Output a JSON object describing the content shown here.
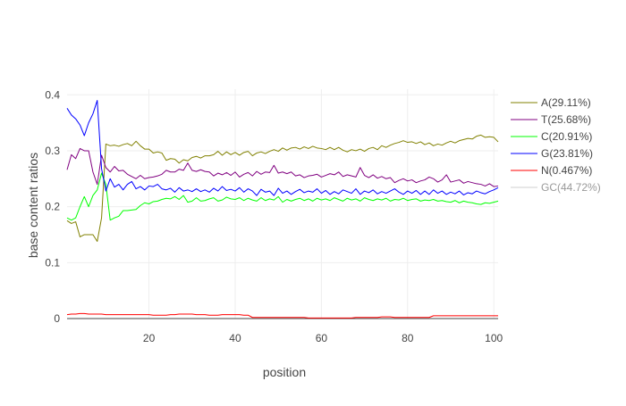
{
  "chart_data": {
    "type": "line",
    "title": "",
    "xlabel": "position",
    "ylabel": "base content ratios",
    "xlim": [
      1,
      101
    ],
    "ylim": [
      0,
      0.41
    ],
    "x_ticks": [
      20,
      40,
      60,
      80,
      100
    ],
    "y_ticks": [
      0,
      0.1,
      0.2,
      0.3,
      0.4
    ],
    "x_tick_labels": [
      "20",
      "40",
      "60",
      "80",
      "100"
    ],
    "y_tick_labels": [
      "0",
      "0.1",
      "0.2",
      "0.3",
      "0.4"
    ],
    "grid": true,
    "legend_position": "right",
    "x": [
      1,
      2,
      3,
      4,
      5,
      6,
      7,
      8,
      9,
      10,
      11,
      12,
      13,
      14,
      15,
      16,
      17,
      18,
      19,
      20,
      21,
      22,
      23,
      24,
      25,
      26,
      27,
      28,
      29,
      30,
      31,
      32,
      33,
      34,
      35,
      36,
      37,
      38,
      39,
      40,
      41,
      42,
      43,
      44,
      45,
      46,
      47,
      48,
      49,
      50,
      51,
      52,
      53,
      54,
      55,
      56,
      57,
      58,
      59,
      60,
      61,
      62,
      63,
      64,
      65,
      66,
      67,
      68,
      69,
      70,
      71,
      72,
      73,
      74,
      75,
      76,
      77,
      78,
      79,
      80,
      81,
      82,
      83,
      84,
      85,
      86,
      87,
      88,
      89,
      90,
      91,
      92,
      93,
      94,
      95,
      96,
      97,
      98,
      99,
      100,
      101
    ],
    "series": [
      {
        "name": "A(29.11%)",
        "color": "#808000",
        "values": [
          0.175,
          0.17,
          0.173,
          0.146,
          0.15,
          0.15,
          0.15,
          0.138,
          0.18,
          0.312,
          0.309,
          0.31,
          0.308,
          0.311,
          0.313,
          0.309,
          0.317,
          0.309,
          0.303,
          0.303,
          0.296,
          0.298,
          0.296,
          0.283,
          0.286,
          0.285,
          0.278,
          0.284,
          0.282,
          0.288,
          0.29,
          0.287,
          0.291,
          0.291,
          0.293,
          0.299,
          0.292,
          0.298,
          0.293,
          0.297,
          0.292,
          0.297,
          0.299,
          0.291,
          0.296,
          0.298,
          0.295,
          0.299,
          0.302,
          0.299,
          0.305,
          0.301,
          0.305,
          0.306,
          0.303,
          0.307,
          0.304,
          0.308,
          0.305,
          0.304,
          0.302,
          0.306,
          0.302,
          0.306,
          0.301,
          0.298,
          0.302,
          0.3,
          0.303,
          0.299,
          0.304,
          0.306,
          0.302,
          0.309,
          0.306,
          0.31,
          0.313,
          0.315,
          0.318,
          0.315,
          0.316,
          0.313,
          0.316,
          0.311,
          0.314,
          0.309,
          0.312,
          0.31,
          0.314,
          0.317,
          0.314,
          0.318,
          0.32,
          0.322,
          0.321,
          0.326,
          0.328,
          0.324,
          0.325,
          0.324,
          0.316
        ]
      },
      {
        "name": "T(25.68%)",
        "color": "#800080",
        "values": [
          0.266,
          0.293,
          0.286,
          0.304,
          0.3,
          0.3,
          0.262,
          0.24,
          0.292,
          0.27,
          0.262,
          0.272,
          0.264,
          0.265,
          0.258,
          0.254,
          0.25,
          0.256,
          0.25,
          0.252,
          0.253,
          0.255,
          0.258,
          0.265,
          0.262,
          0.262,
          0.267,
          0.265,
          0.278,
          0.265,
          0.263,
          0.266,
          0.263,
          0.262,
          0.255,
          0.26,
          0.257,
          0.261,
          0.256,
          0.262,
          0.253,
          0.258,
          0.261,
          0.255,
          0.263,
          0.258,
          0.262,
          0.261,
          0.274,
          0.26,
          0.262,
          0.259,
          0.262,
          0.255,
          0.257,
          0.252,
          0.255,
          0.256,
          0.258,
          0.253,
          0.256,
          0.259,
          0.257,
          0.262,
          0.254,
          0.257,
          0.255,
          0.253,
          0.27,
          0.256,
          0.252,
          0.257,
          0.251,
          0.254,
          0.25,
          0.252,
          0.243,
          0.247,
          0.25,
          0.246,
          0.248,
          0.243,
          0.246,
          0.248,
          0.253,
          0.25,
          0.244,
          0.248,
          0.257,
          0.244,
          0.246,
          0.248,
          0.242,
          0.245,
          0.243,
          0.241,
          0.24,
          0.237,
          0.241,
          0.236,
          0.237
        ]
      },
      {
        "name": "C(20.91%)",
        "color": "#00ff00",
        "values": [
          0.18,
          0.176,
          0.18,
          0.2,
          0.218,
          0.2,
          0.22,
          0.23,
          0.26,
          0.24,
          0.176,
          0.18,
          0.183,
          0.193,
          0.193,
          0.194,
          0.195,
          0.202,
          0.207,
          0.205,
          0.209,
          0.21,
          0.213,
          0.215,
          0.214,
          0.218,
          0.213,
          0.22,
          0.208,
          0.21,
          0.216,
          0.21,
          0.211,
          0.214,
          0.216,
          0.21,
          0.212,
          0.217,
          0.214,
          0.213,
          0.216,
          0.211,
          0.215,
          0.212,
          0.21,
          0.216,
          0.211,
          0.214,
          0.212,
          0.218,
          0.208,
          0.213,
          0.21,
          0.213,
          0.215,
          0.211,
          0.214,
          0.21,
          0.215,
          0.212,
          0.214,
          0.211,
          0.216,
          0.213,
          0.21,
          0.215,
          0.212,
          0.214,
          0.21,
          0.216,
          0.213,
          0.211,
          0.214,
          0.212,
          0.215,
          0.21,
          0.213,
          0.212,
          0.215,
          0.211,
          0.213,
          0.214,
          0.21,
          0.212,
          0.211,
          0.213,
          0.21,
          0.211,
          0.209,
          0.208,
          0.211,
          0.207,
          0.21,
          0.208,
          0.207,
          0.205,
          0.204,
          0.207,
          0.206,
          0.208,
          0.21
        ]
      },
      {
        "name": "G(23.81%)",
        "color": "#0000ff",
        "values": [
          0.376,
          0.364,
          0.357,
          0.346,
          0.327,
          0.35,
          0.366,
          0.39,
          0.268,
          0.228,
          0.25,
          0.235,
          0.24,
          0.23,
          0.24,
          0.245,
          0.232,
          0.236,
          0.23,
          0.237,
          0.236,
          0.24,
          0.232,
          0.23,
          0.233,
          0.226,
          0.234,
          0.228,
          0.23,
          0.227,
          0.232,
          0.227,
          0.23,
          0.226,
          0.233,
          0.228,
          0.236,
          0.229,
          0.231,
          0.228,
          0.234,
          0.226,
          0.232,
          0.228,
          0.22,
          0.231,
          0.226,
          0.228,
          0.22,
          0.233,
          0.224,
          0.228,
          0.222,
          0.227,
          0.231,
          0.225,
          0.228,
          0.226,
          0.232,
          0.224,
          0.229,
          0.222,
          0.227,
          0.223,
          0.23,
          0.227,
          0.224,
          0.232,
          0.222,
          0.228,
          0.225,
          0.23,
          0.223,
          0.227,
          0.224,
          0.228,
          0.232,
          0.226,
          0.222,
          0.228,
          0.224,
          0.229,
          0.222,
          0.228,
          0.222,
          0.23,
          0.224,
          0.228,
          0.222,
          0.226,
          0.223,
          0.228,
          0.221,
          0.225,
          0.223,
          0.228,
          0.225,
          0.223,
          0.227,
          0.23,
          0.234
        ]
      },
      {
        "name": "N(0.467%)",
        "color": "#ff0000",
        "values": [
          0.007,
          0.008,
          0.008,
          0.009,
          0.009,
          0.008,
          0.008,
          0.008,
          0.008,
          0.007,
          0.007,
          0.007,
          0.007,
          0.007,
          0.007,
          0.007,
          0.007,
          0.007,
          0.007,
          0.007,
          0.006,
          0.006,
          0.006,
          0.006,
          0.007,
          0.007,
          0.008,
          0.008,
          0.008,
          0.008,
          0.007,
          0.007,
          0.007,
          0.006,
          0.006,
          0.006,
          0.007,
          0.007,
          0.007,
          0.007,
          0.007,
          0.006,
          0.006,
          0.002,
          0.002,
          0.002,
          0.002,
          0.002,
          0.002,
          0.002,
          0.002,
          0.002,
          0.002,
          0.002,
          0.002,
          0.002,
          0.001,
          0.001,
          0.001,
          0.001,
          0.001,
          0.001,
          0.001,
          0.001,
          0.001,
          0.001,
          0.001,
          0.002,
          0.002,
          0.002,
          0.002,
          0.002,
          0.002,
          0.003,
          0.003,
          0.003,
          0.002,
          0.002,
          0.002,
          0.002,
          0.002,
          0.002,
          0.002,
          0.002,
          0.002,
          0.005,
          0.005,
          0.005,
          0.005,
          0.005,
          0.005,
          0.005,
          0.005,
          0.005,
          0.005,
          0.005,
          0.005,
          0.005,
          0.005,
          0.005,
          0.005
        ]
      }
    ],
    "legend": [
      {
        "name": "A(29.11%)",
        "color": "#808000",
        "visible": true
      },
      {
        "name": "T(25.68%)",
        "color": "#800080",
        "visible": true
      },
      {
        "name": "C(20.91%)",
        "color": "#00ff00",
        "visible": true
      },
      {
        "name": "G(23.81%)",
        "color": "#0000ff",
        "visible": true
      },
      {
        "name": "N(0.467%)",
        "color": "#ff0000",
        "visible": true
      },
      {
        "name": "GC(44.72%)",
        "color": "#a0a0a0",
        "visible": false
      }
    ]
  }
}
